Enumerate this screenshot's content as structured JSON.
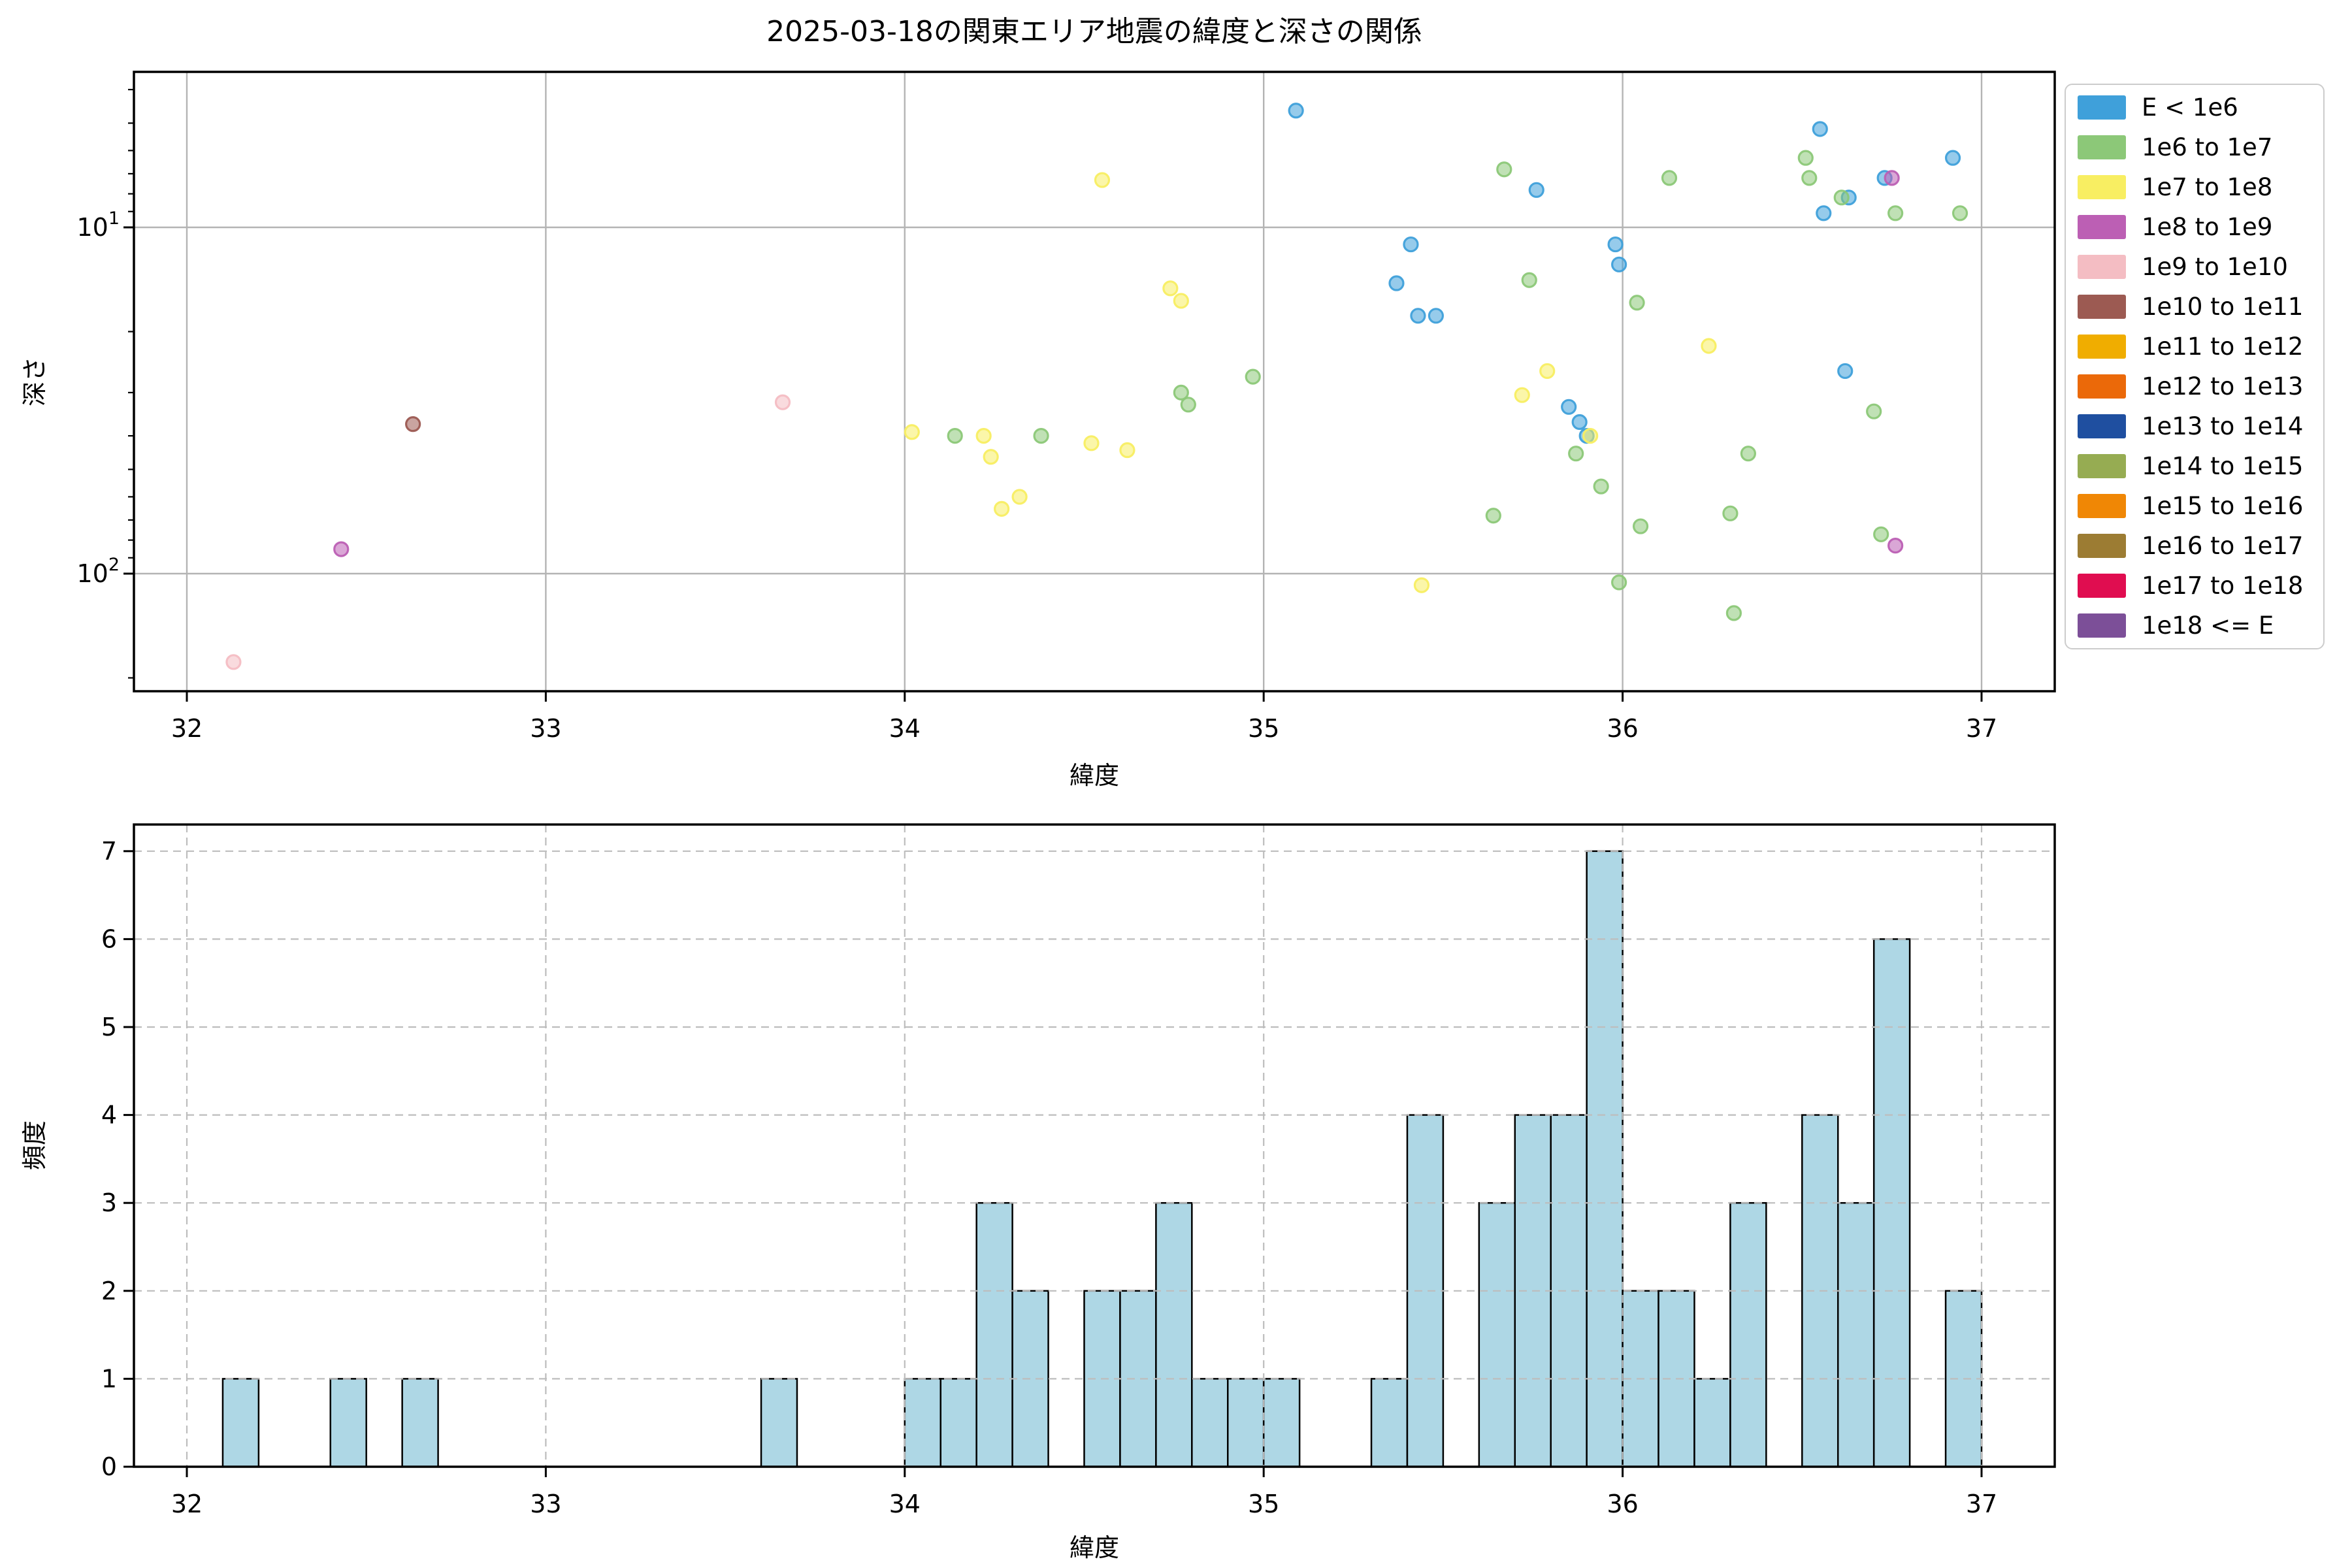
{
  "figure_title": "2025-03-18の関東エリア地震の緯度と深さの関係",
  "legend": {
    "items": [
      {
        "label": "E < 1e6",
        "color": "#3fa0da"
      },
      {
        "label": "1e6 to 1e7",
        "color": "#8cc878"
      },
      {
        "label": "1e7 to 1e8",
        "color": "#f8ee62"
      },
      {
        "label": "1e8 to 1e9",
        "color": "#bc5fb4"
      },
      {
        "label": "1e9 to 1e10",
        "color": "#f4bdc3"
      },
      {
        "label": "1e10 to 1e11",
        "color": "#9c5a52"
      },
      {
        "label": "1e11 to 1e12",
        "color": "#f0ad00"
      },
      {
        "label": "1e12 to 1e13",
        "color": "#eb6909"
      },
      {
        "label": "1e13 to 1e14",
        "color": "#1f4fa0"
      },
      {
        "label": "1e14 to 1e15",
        "color": "#96ac52"
      },
      {
        "label": "1e15 to 1e16",
        "color": "#f08705"
      },
      {
        "label": "1e16 to 1e17",
        "color": "#9c7c33"
      },
      {
        "label": "1e17 to 1e18",
        "color": "#e00d50"
      },
      {
        "label": "1e18 <= E",
        "color": "#7c4f98"
      }
    ]
  },
  "chart_data": [
    {
      "type": "scatter",
      "title": "2025-03-18の関東エリア地震の緯度と深さの関係",
      "xlabel": "緯度",
      "ylabel": "深さ",
      "xlim": [
        31.85,
        37.21
      ],
      "x_ticks": [
        32,
        33,
        34,
        35,
        36,
        37
      ],
      "y_axis": "log, inverted (depth increases downward)",
      "ylim_depth": [
        3.56,
        219
      ],
      "y_major_ticks": [
        10,
        100
      ],
      "y_minor_ticks": [
        4,
        5,
        6,
        7,
        8,
        9,
        20,
        30,
        40,
        50,
        60,
        70,
        80,
        90,
        200
      ],
      "grid": "solid gray, major only",
      "legend_position": "outside upper right",
      "series": [
        {
          "name": "E < 1e6",
          "color": "#3fa0da",
          "points": [
            [
              35.09,
              4.6
            ],
            [
              35.37,
              14.5
            ],
            [
              35.41,
              11.2
            ],
            [
              35.43,
              18
            ],
            [
              35.48,
              18
            ],
            [
              35.76,
              7.8
            ],
            [
              35.85,
              33
            ],
            [
              35.88,
              36.5
            ],
            [
              35.9,
              40
            ],
            [
              35.98,
              11.2
            ],
            [
              35.99,
              12.8
            ],
            [
              36.55,
              5.2
            ],
            [
              36.56,
              9.1
            ],
            [
              36.62,
              26
            ],
            [
              36.63,
              8.2
            ],
            [
              36.73,
              7.2
            ],
            [
              36.92,
              6.3
            ]
          ]
        },
        {
          "name": "1e6 to 1e7",
          "color": "#8cc878",
          "points": [
            [
              34.14,
              40
            ],
            [
              34.38,
              40
            ],
            [
              34.77,
              30
            ],
            [
              34.79,
              32.5
            ],
            [
              34.97,
              27
            ],
            [
              35.64,
              68
            ],
            [
              35.67,
              6.8
            ],
            [
              35.74,
              14.2
            ],
            [
              35.87,
              45
            ],
            [
              35.94,
              56
            ],
            [
              35.99,
              106
            ],
            [
              36.04,
              16.5
            ],
            [
              36.05,
              73
            ],
            [
              36.13,
              7.2
            ],
            [
              36.3,
              67
            ],
            [
              36.31,
              130
            ],
            [
              36.35,
              45
            ],
            [
              36.51,
              6.3
            ],
            [
              36.52,
              7.2
            ],
            [
              36.61,
              8.2
            ],
            [
              36.7,
              34
            ],
            [
              36.72,
              77
            ],
            [
              36.76,
              9.1
            ],
            [
              36.94,
              9.1
            ]
          ]
        },
        {
          "name": "1e7 to 1e8",
          "color": "#f8ee62",
          "points": [
            [
              34.02,
              39
            ],
            [
              34.22,
              40
            ],
            [
              34.24,
              46
            ],
            [
              34.27,
              65
            ],
            [
              34.32,
              60
            ],
            [
              34.52,
              42
            ],
            [
              34.55,
              7.3
            ],
            [
              34.62,
              44
            ],
            [
              34.74,
              15
            ],
            [
              34.77,
              16.3
            ],
            [
              35.44,
              108
            ],
            [
              35.72,
              30.5
            ],
            [
              35.79,
              26
            ],
            [
              35.91,
              40
            ],
            [
              36.24,
              22
            ]
          ]
        },
        {
          "name": "1e8 to 1e9",
          "color": "#bc5fb4",
          "points": [
            [
              32.43,
              85
            ],
            [
              36.75,
              7.2
            ],
            [
              36.76,
              83
            ]
          ]
        },
        {
          "name": "1e9 to 1e10",
          "color": "#f4bdc3",
          "points": [
            [
              32.13,
              180
            ],
            [
              33.66,
              32
            ]
          ]
        },
        {
          "name": "1e10 to 1e11",
          "color": "#9c5a52",
          "points": [
            [
              32.63,
              37
            ]
          ]
        },
        {
          "name": "1e11 to 1e12",
          "color": "#f0ad00",
          "points": []
        },
        {
          "name": "1e12 to 1e13",
          "color": "#eb6909",
          "points": []
        },
        {
          "name": "1e13 to 1e14",
          "color": "#1f4fa0",
          "points": []
        },
        {
          "name": "1e14 to 1e15",
          "color": "#96ac52",
          "points": []
        },
        {
          "name": "1e15 to 1e16",
          "color": "#f08705",
          "points": []
        },
        {
          "name": "1e16 to 1e17",
          "color": "#9c7c33",
          "points": []
        },
        {
          "name": "1e17 to 1e18",
          "color": "#e00d50",
          "points": []
        },
        {
          "name": "1e18 <= E",
          "color": "#7c4f98",
          "points": []
        }
      ]
    },
    {
      "type": "bar",
      "subtype": "histogram",
      "xlabel": "緯度",
      "ylabel": "頻度",
      "xlim": [
        31.85,
        37.21
      ],
      "x_ticks": [
        32,
        33,
        34,
        35,
        36,
        37
      ],
      "ylim": [
        0,
        7.3
      ],
      "y_ticks": [
        0,
        1,
        2,
        3,
        4,
        5,
        6,
        7
      ],
      "grid": "dashed gray, both axes",
      "bar_color": "#aed7e5",
      "bar_edge_color": "#000000",
      "bin_width": 0.1,
      "bins": [
        {
          "start": 32.1,
          "count": 1
        },
        {
          "start": 32.4,
          "count": 1
        },
        {
          "start": 32.6,
          "count": 1
        },
        {
          "start": 33.6,
          "count": 1
        },
        {
          "start": 34.0,
          "count": 1
        },
        {
          "start": 34.1,
          "count": 1
        },
        {
          "start": 34.2,
          "count": 3
        },
        {
          "start": 34.3,
          "count": 2
        },
        {
          "start": 34.5,
          "count": 2
        },
        {
          "start": 34.6,
          "count": 2
        },
        {
          "start": 34.7,
          "count": 3
        },
        {
          "start": 34.8,
          "count": 1
        },
        {
          "start": 34.9,
          "count": 1
        },
        {
          "start": 35.0,
          "count": 1
        },
        {
          "start": 35.3,
          "count": 1
        },
        {
          "start": 35.4,
          "count": 4
        },
        {
          "start": 35.6,
          "count": 3
        },
        {
          "start": 35.7,
          "count": 4
        },
        {
          "start": 35.8,
          "count": 4
        },
        {
          "start": 35.9,
          "count": 7
        },
        {
          "start": 36.0,
          "count": 2
        },
        {
          "start": 36.1,
          "count": 2
        },
        {
          "start": 36.2,
          "count": 1
        },
        {
          "start": 36.3,
          "count": 3
        },
        {
          "start": 36.5,
          "count": 4
        },
        {
          "start": 36.6,
          "count": 3
        },
        {
          "start": 36.7,
          "count": 6
        },
        {
          "start": 36.9,
          "count": 2
        }
      ]
    }
  ]
}
